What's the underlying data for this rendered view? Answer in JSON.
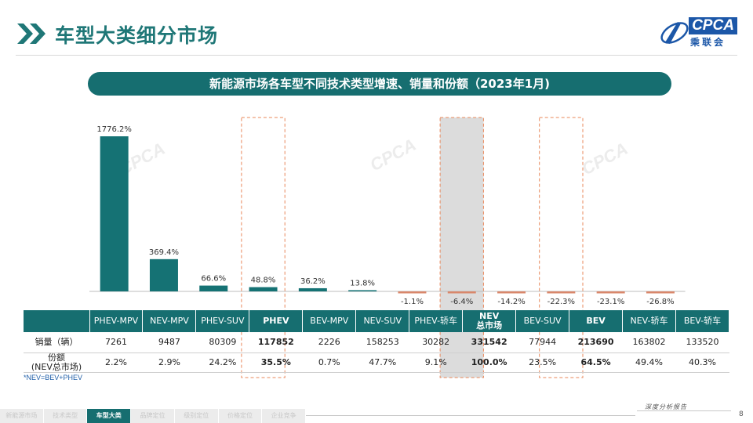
{
  "header": {
    "title": "车型大类细分市场",
    "logo_text": "CPCA",
    "logo_cn": "乘联会"
  },
  "banner": {
    "text": "新能源市场各车型不同技术类型增速、销量和份额（2023年1月)"
  },
  "chart_data": {
    "type": "bar",
    "title": "新能源市场各车型不同技术类型增速、销量和份额（2023年1月)",
    "categories": [
      "PHEV-MPV",
      "NEV-MPV",
      "PHEV-SUV",
      "PHEV",
      "BEV-MPV",
      "NEV-SUV",
      "PHEV-轿车",
      "NEV\n总市场",
      "BEV-SUV",
      "BEV",
      "NEV-轿车",
      "BEV-轿车"
    ],
    "series": [
      {
        "values": [
          1776.2,
          369.4,
          66.6,
          48.8,
          36.2,
          13.8,
          -1.1,
          -6.4,
          -14.2,
          -22.3,
          -23.1,
          -26.8
        ],
        "labels": [
          "1776.2%",
          "369.4%",
          "66.6%",
          "48.8%",
          "36.2%",
          "13.8%",
          "-1.1%",
          "-6.4%",
          "-14.2%",
          "-22.3%",
          "-23.1%",
          "-26.8%"
        ]
      }
    ],
    "colors": {
      "positive": "#157274",
      "negative": "#d9876b",
      "highlight_border": "#e8875a",
      "total_shade": "#dcdcdc"
    },
    "highlighted_categories": [
      "PHEV",
      "NEV\n总市场",
      "BEV"
    ],
    "grid": false
  },
  "table": {
    "columns": [
      "PHEV-MPV",
      "NEV-MPV",
      "PHEV-SUV",
      "PHEV",
      "BEV-MPV",
      "NEV-SUV",
      "PHEV-轿车",
      "NEV\n总市场",
      "BEV-SUV",
      "BEV",
      "NEV-轿车",
      "BEV-轿车"
    ],
    "rows": [
      {
        "label": "销量（辆）",
        "values": [
          "7261",
          "9487",
          "80309",
          "117852",
          "2226",
          "158253",
          "30282",
          "331542",
          "77944",
          "213690",
          "163802",
          "133520"
        ]
      },
      {
        "label": "份额\n(NEV总市场)",
        "values": [
          "2.2%",
          "2.9%",
          "24.2%",
          "35.5%",
          "0.7%",
          "47.7%",
          "9.1%",
          "100.0%",
          "23.5%",
          "64.5%",
          "49.4%",
          "40.3%"
        ]
      }
    ],
    "bold_columns": [
      3,
      7,
      9
    ],
    "note": "*NEV=BEV+PHEV"
  },
  "footer": {
    "tabs": [
      "新能源市场",
      "技术类型",
      "车型大类",
      "品牌定位",
      "级别定位",
      "价格定位",
      "企业竞争"
    ],
    "active_tab": 2,
    "report_label": "深度分析报告",
    "page_number": "8"
  }
}
